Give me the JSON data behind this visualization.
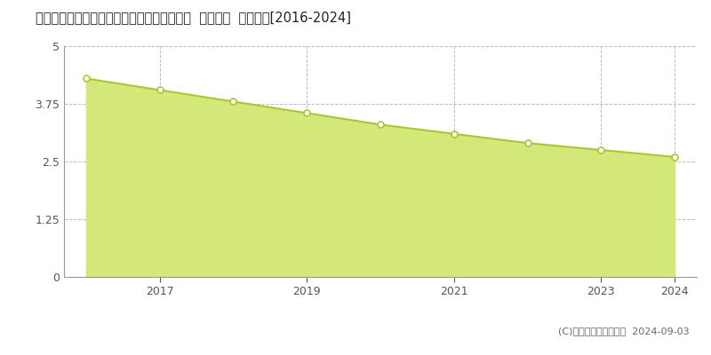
{
  "title": "愛知県知多郡南知多町大字山海字小山８９番  地価公示  地価推移[2016-2024]",
  "years": [
    2016,
    2017,
    2018,
    2019,
    2020,
    2021,
    2022,
    2023,
    2024
  ],
  "values": [
    4.3,
    4.05,
    3.8,
    3.55,
    3.3,
    3.1,
    2.9,
    2.75,
    2.6
  ],
  "line_color": "#a8c832",
  "fill_color": "#d4e87a",
  "marker_color": "#ffffff",
  "marker_edge_color": "#a8c832",
  "ylim": [
    0,
    5
  ],
  "yticks": [
    0,
    1.25,
    2.5,
    3.75,
    5
  ],
  "grid_color": "#bbbbbb",
  "bg_color": "#ffffff",
  "plot_bg_color": "#ffffff",
  "legend_color": "#c8dc50",
  "copyright_text": "(C)土地価格ドットコム  2024-09-03",
  "xtick_labels": [
    "2017",
    "2019",
    "2021",
    "2023",
    "2024"
  ],
  "xtick_positions": [
    2017,
    2019,
    2021,
    2023,
    2024
  ],
  "xlim_left": 2015.7,
  "xlim_right": 2024.3
}
